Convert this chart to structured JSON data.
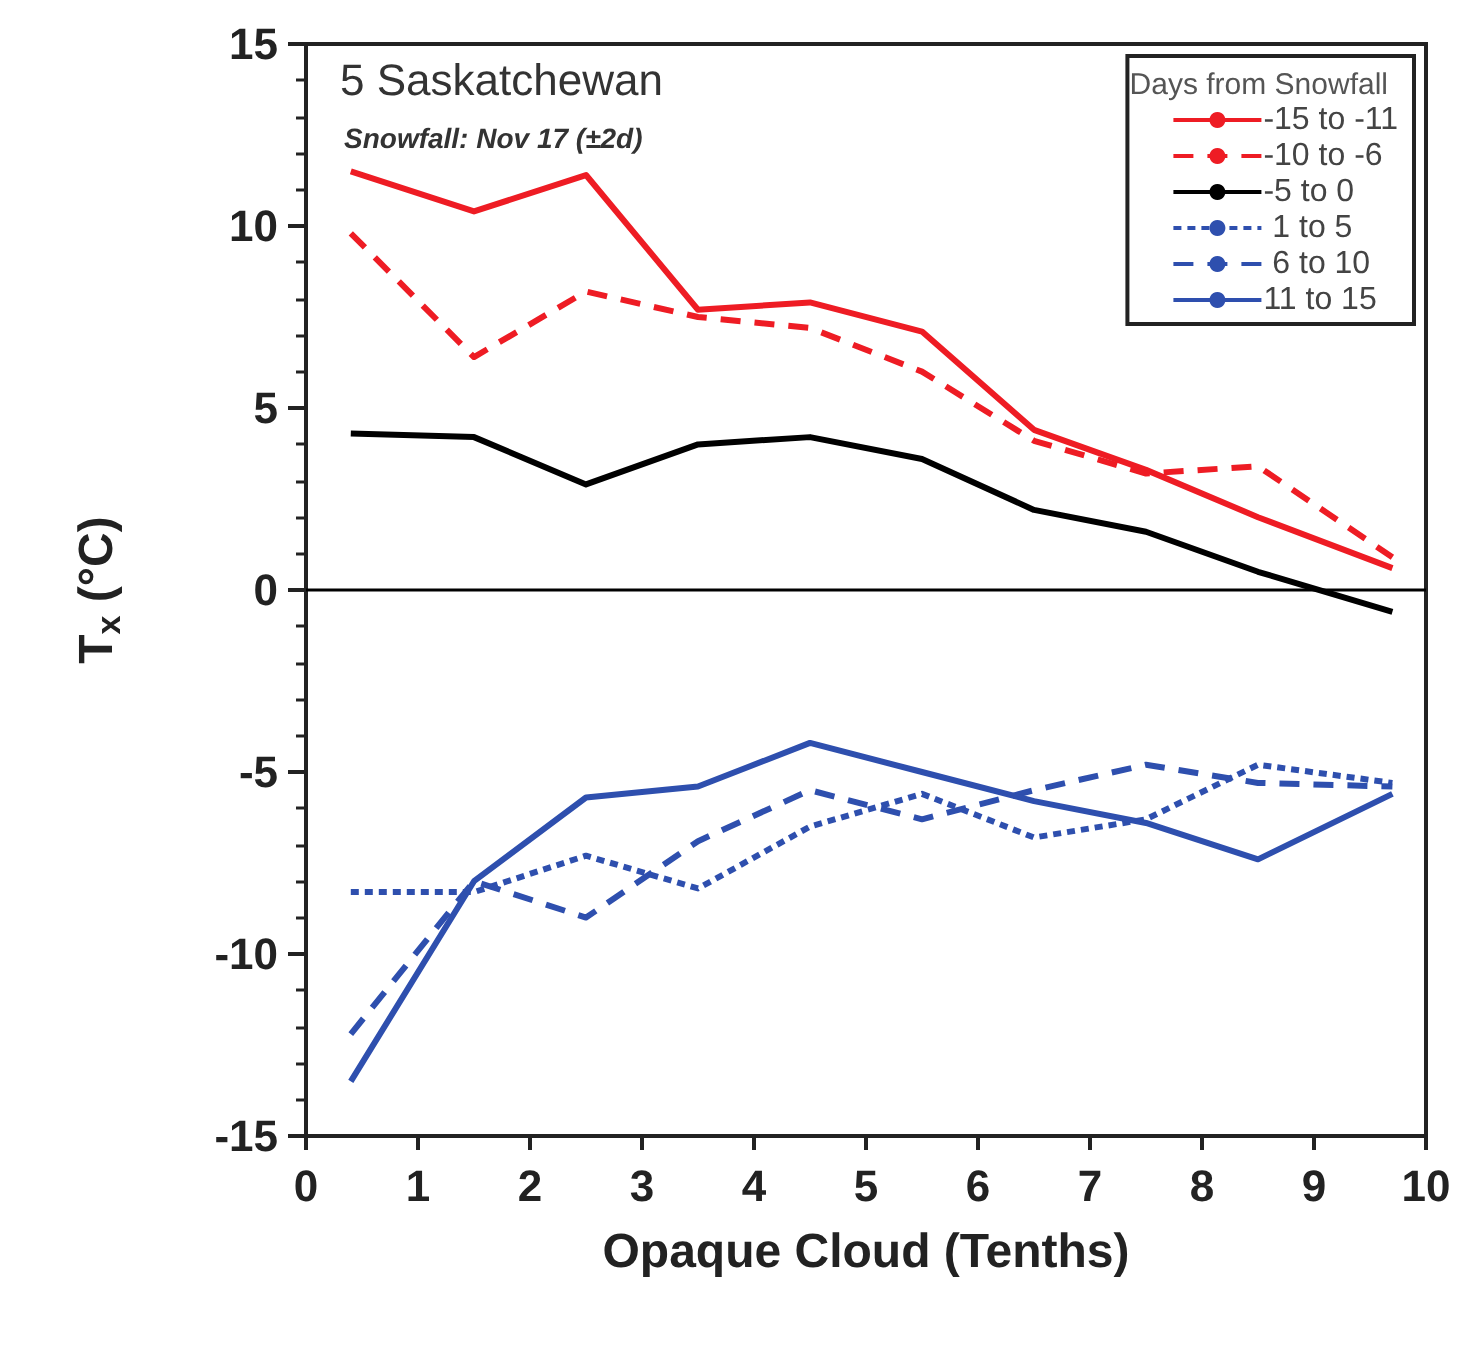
{
  "chart_data": {
    "type": "line",
    "title": "5 Saskatchewan",
    "subtitle": "Snowfall: Nov 17 (±2d)",
    "xlabel": "Opaque Cloud (Tenths)",
    "ylabel": "T$_{x}$ (°C)",
    "legend_title": "Days from Snowfall",
    "x": [
      0.4,
      1.5,
      2.5,
      3.5,
      4.5,
      5.5,
      6.5,
      7.5,
      8.5,
      9.7
    ],
    "series": [
      {
        "name": "-15 to -11",
        "color": "#ee1c24",
        "line_style": "solid",
        "values": [
          11.5,
          10.4,
          11.4,
          7.7,
          7.9,
          7.1,
          4.4,
          3.3,
          2.0,
          0.6
        ]
      },
      {
        "name": "-10 to -6",
        "color": "#ee1c24",
        "line_style": "dashed",
        "values": [
          9.8,
          6.4,
          8.2,
          7.5,
          7.2,
          6.0,
          4.1,
          3.2,
          3.4,
          0.9
        ]
      },
      {
        "name": "-5 to 0",
        "color": "#000000",
        "line_style": "solid",
        "values": [
          4.3,
          4.2,
          2.9,
          4.0,
          4.2,
          3.6,
          2.2,
          1.6,
          0.5,
          -0.6
        ]
      },
      {
        "name": " 1 to 5",
        "color": "#2e4fae",
        "line_style": "dotted",
        "values": [
          -8.3,
          -8.3,
          -7.3,
          -8.2,
          -6.5,
          -5.6,
          -6.8,
          -6.3,
          -4.8,
          -5.3
        ]
      },
      {
        "name": " 6 to 10",
        "color": "#2e4fae",
        "line_style": "dashed",
        "values": [
          -12.2,
          -8.0,
          -9.0,
          -6.9,
          -5.5,
          -6.3,
          -5.5,
          -4.8,
          -5.3,
          -5.4
        ]
      },
      {
        "name": "11 to 15",
        "color": "#2e4fae",
        "line_style": "solid",
        "values": [
          -13.5,
          -8.0,
          -5.7,
          -5.4,
          -4.2,
          -5.0,
          -5.8,
          -6.4,
          -7.4,
          -5.6
        ]
      }
    ],
    "xlim": [
      0,
      10
    ],
    "xticks": [
      0,
      1,
      2,
      3,
      4,
      5,
      6,
      7,
      8,
      9,
      10
    ],
    "ylim": [
      -15,
      15
    ],
    "yticks": [
      -15,
      -10,
      -5,
      0,
      5,
      10,
      15
    ],
    "ref_lines": [
      {
        "axis": "y",
        "value": 0,
        "color": "#000000"
      }
    ],
    "grid": false,
    "legend": "top right",
    "marker": "none"
  }
}
